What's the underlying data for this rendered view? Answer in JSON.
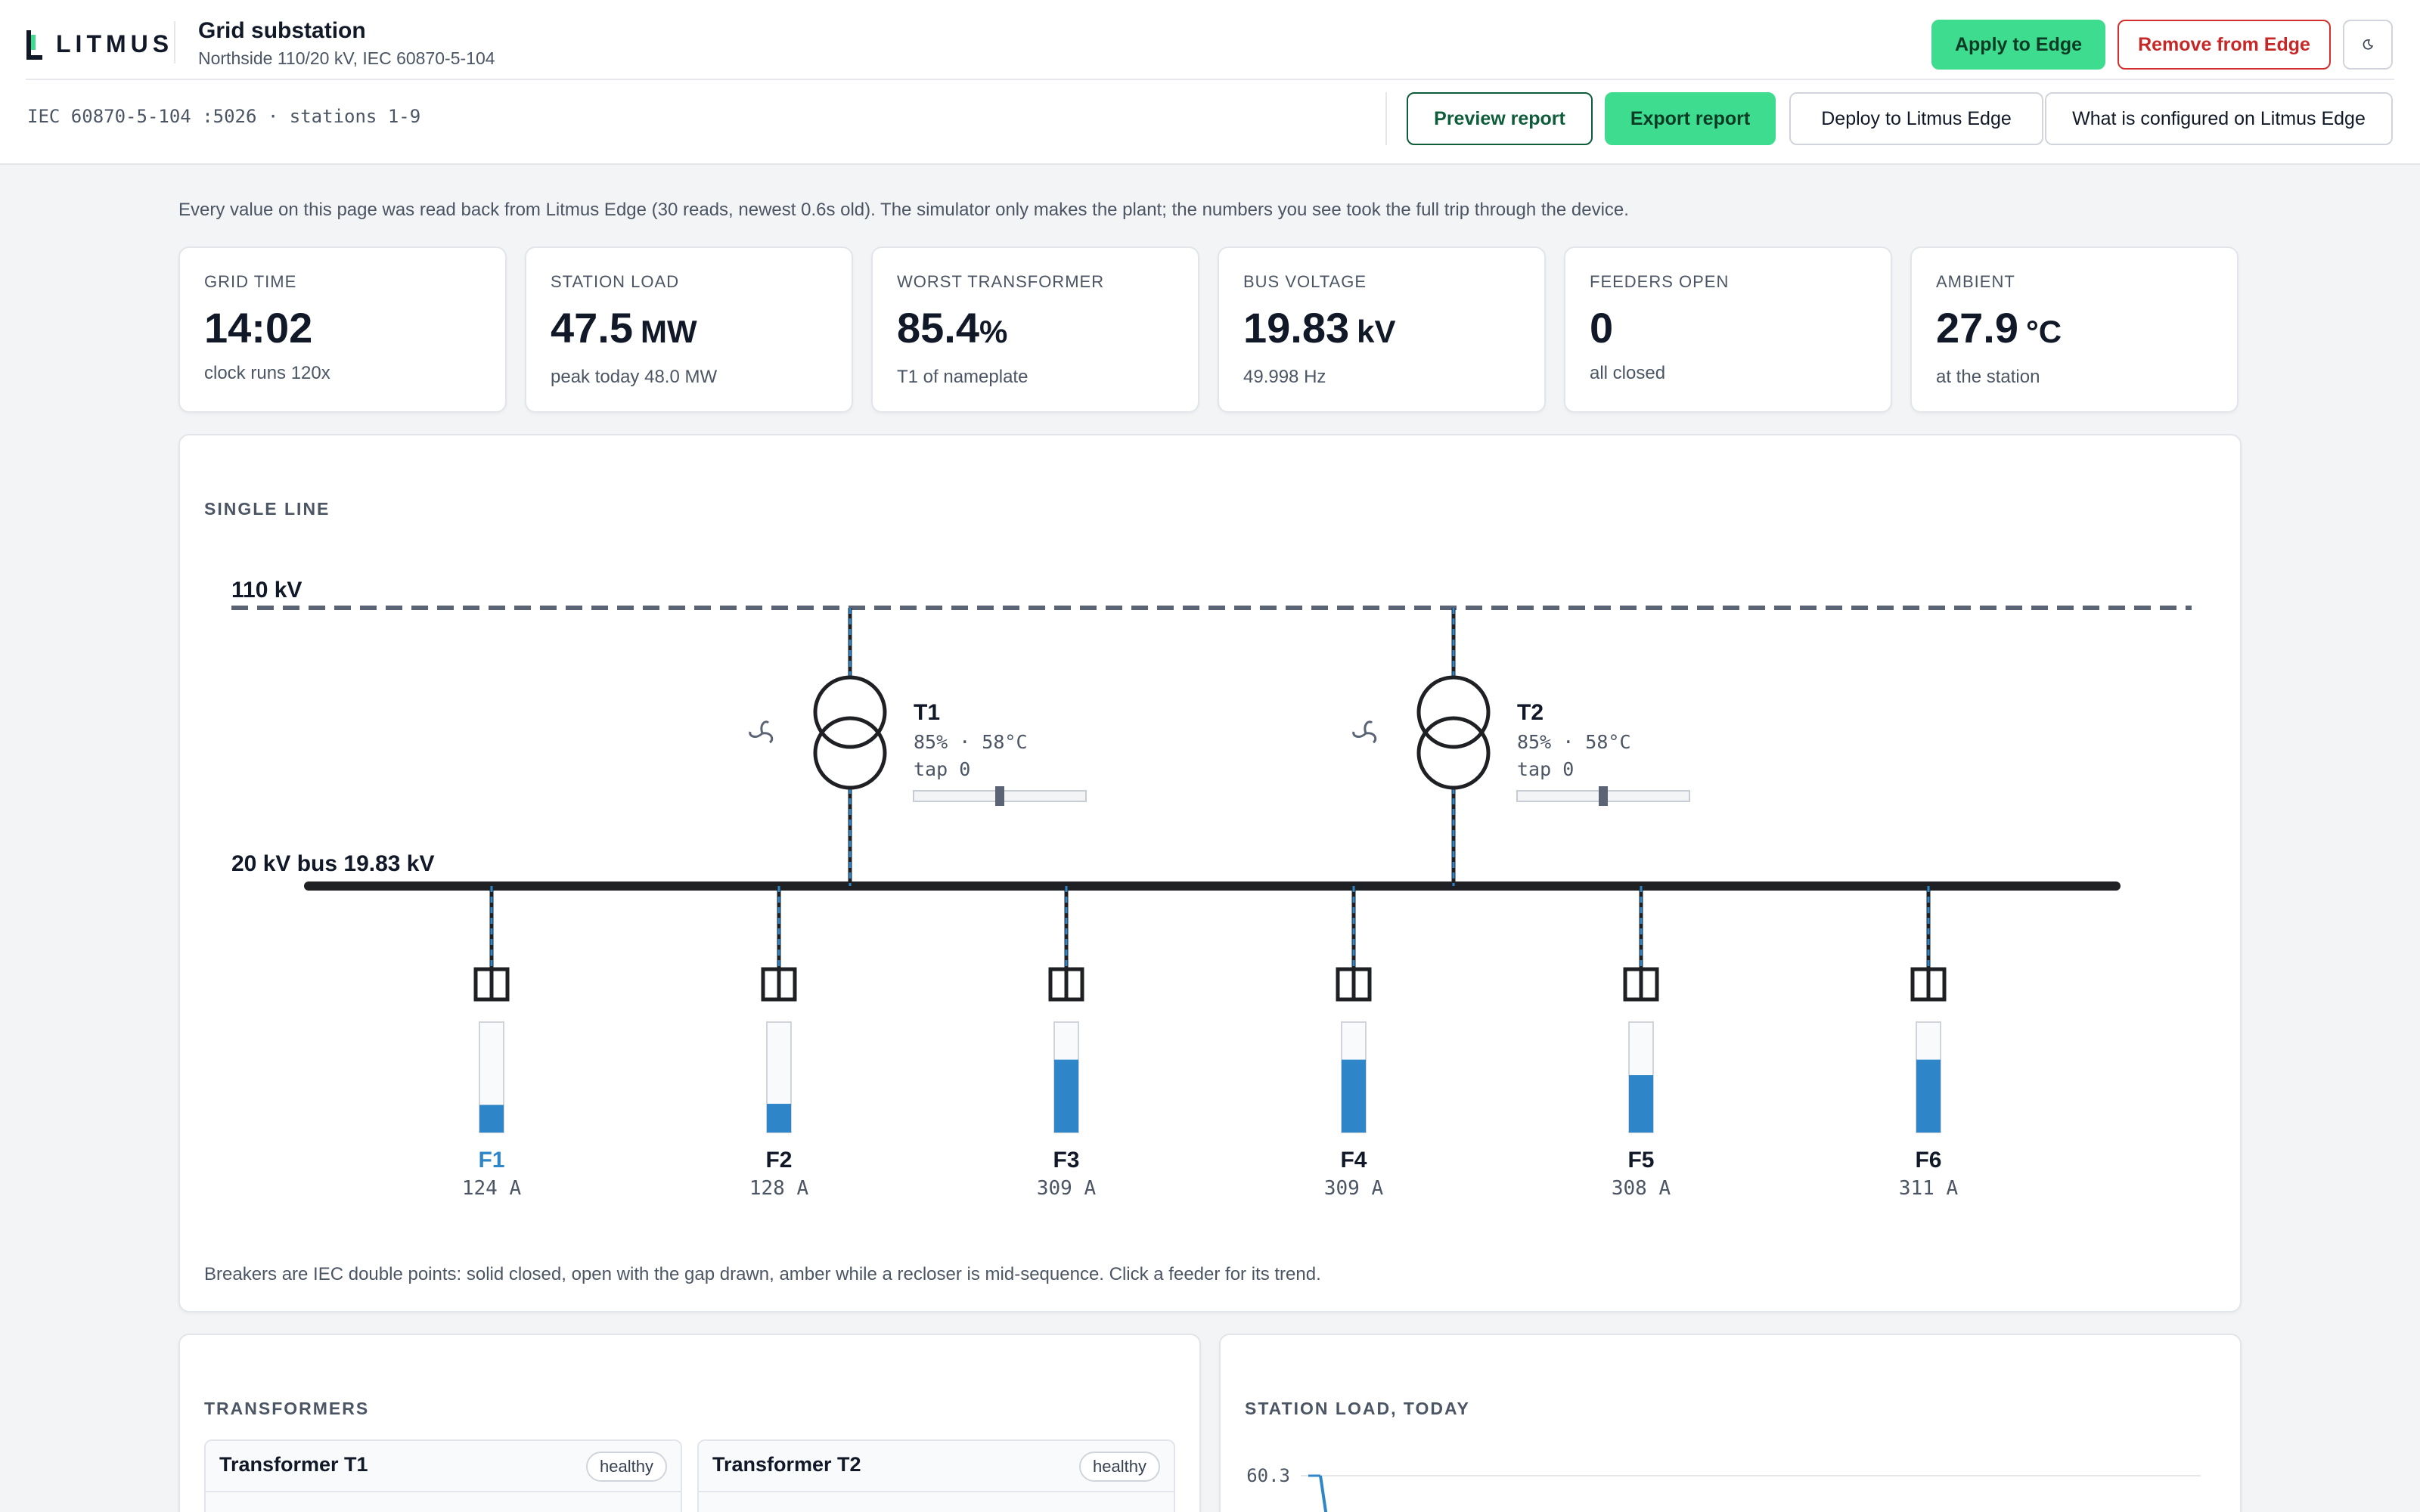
{
  "header": {
    "logo_text": "LITMUS",
    "title": "Grid substation",
    "subtitle": "Northside 110/20 kV, IEC 60870-5-104",
    "apply_label": "Apply to Edge",
    "remove_label": "Remove from Edge",
    "theme_toggle_icon": "moon-icon",
    "endpoint": "IEC 60870-5-104 :5026 · stations 1-9",
    "preview_label": "Preview report",
    "export_label": "Export report",
    "deploy_label": "Deploy to Litmus Edge",
    "configured_label": "What is configured on Litmus Edge"
  },
  "notice": "Every value on this page was read back from Litmus Edge (30 reads, newest 0.6s old). The simulator only makes the plant; the numbers you see took the full trip through the device.",
  "stats": [
    {
      "label": "GRID TIME",
      "value": "14:02",
      "unit": "",
      "sub": "clock runs 120x"
    },
    {
      "label": "STATION LOAD",
      "value": "47.5",
      "unit": "MW",
      "sub": "peak today 48.0 MW"
    },
    {
      "label": "WORST TRANSFORMER",
      "value": "85.4",
      "unit": "%",
      "sub": "T1 of nameplate"
    },
    {
      "label": "BUS VOLTAGE",
      "value": "19.83",
      "unit": "kV",
      "sub": "49.998 Hz"
    },
    {
      "label": "FEEDERS OPEN",
      "value": "0",
      "unit": "",
      "sub": "all closed"
    },
    {
      "label": "AMBIENT",
      "value": "27.9",
      "unit": "°C",
      "sub": "at the station"
    }
  ],
  "single_line": {
    "title": "SINGLE LINE",
    "hv_label": "110 kV",
    "bus_label": "20 kV bus 19.83 kV",
    "transformers": [
      {
        "name": "T1",
        "stats": "85% · 58°C",
        "tap": "tap 0",
        "tap_fraction": 0.5
      },
      {
        "name": "T2",
        "stats": "85% · 58°C",
        "tap": "tap 0",
        "tap_fraction": 0.5
      }
    ],
    "feeders": [
      {
        "name": "F1",
        "current": "124 A",
        "level": 0.25,
        "selected": true
      },
      {
        "name": "F2",
        "current": "128 A",
        "level": 0.26,
        "selected": false
      },
      {
        "name": "F3",
        "current": "309 A",
        "level": 0.66,
        "selected": false
      },
      {
        "name": "F4",
        "current": "309 A",
        "level": 0.66,
        "selected": false
      },
      {
        "name": "F5",
        "current": "308 A",
        "level": 0.52,
        "selected": false
      },
      {
        "name": "F6",
        "current": "311 A",
        "level": 0.66,
        "selected": false
      }
    ],
    "caption": "Breakers are IEC double points: solid closed, open with the gap drawn, amber while a recloser is mid-sequence. Click a feeder for its trend."
  },
  "transformers_panel": {
    "title": "TRANSFORMERS",
    "items": [
      {
        "name": "Transformer T1",
        "status": "healthy"
      },
      {
        "name": "Transformer T2",
        "status": "healthy"
      }
    ]
  },
  "load_panel": {
    "title": "STATION LOAD, TODAY",
    "y_tick": "60.3"
  },
  "colors": {
    "accent_green": "#3ddc8f",
    "danger_red": "#d32f2f",
    "feeder_blue": "#2e86c9",
    "bus_black": "#1f2023",
    "hv_dash": "#5b6475"
  }
}
